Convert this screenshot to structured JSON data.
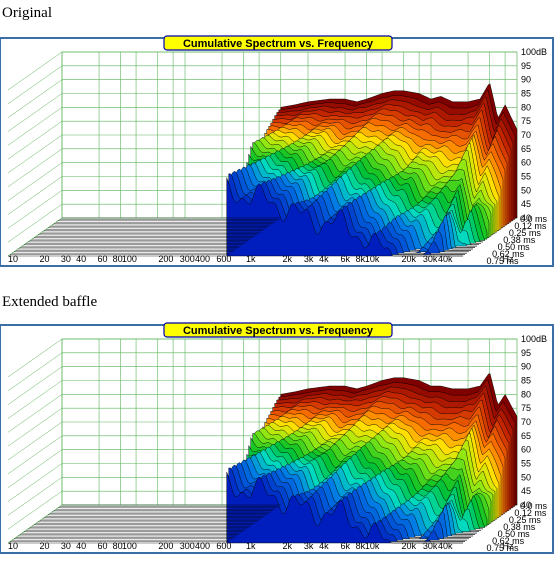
{
  "captions": [
    "Original",
    "Extended baffle"
  ],
  "chart_data": [
    {
      "type": "area",
      "title": "Cumulative Spectrum vs. Frequency",
      "xlabel": "Hz",
      "y_unit": "dB",
      "z_axis": "time (ms)",
      "x_scale": "log",
      "x_ticks": [
        "10",
        "20",
        "30",
        "40",
        "60",
        "80",
        "100",
        "200",
        "300",
        "400",
        "600",
        "1k",
        "2k",
        "3k",
        "4k",
        "6k",
        "8k",
        "10k",
        "20k",
        "30k",
        "40k",
        "Hz"
      ],
      "y_ticks": [
        "100dB",
        "95",
        "90",
        "85",
        "80",
        "75",
        "70",
        "65",
        "60",
        "55",
        "50",
        "45",
        "40"
      ],
      "z_ticks": [
        "0.0 ms",
        "0.12 ms",
        "0.25 ms",
        "0.38 ms",
        "0.50 ms",
        "0.62 ms",
        "0.75 ms"
      ],
      "ylim": [
        40,
        100
      ],
      "xlim": [
        10,
        50000
      ],
      "data_x_start": 600,
      "slices": 28,
      "decay_profile": "original",
      "first_slice": {
        "x": [
          600,
          800,
          1000,
          1500,
          2000,
          2500,
          3000,
          4000,
          5000,
          6000,
          8000,
          10000,
          12000,
          15000,
          20000,
          25000,
          30000,
          35000,
          40000,
          50000
        ],
        "y": [
          80,
          81,
          82,
          83,
          83,
          82,
          83,
          85,
          86,
          86,
          85,
          83,
          84,
          82,
          82,
          83,
          89,
          76,
          81,
          72
        ]
      }
    },
    {
      "type": "area",
      "title": "Cumulative Spectrum vs. Frequency",
      "xlabel": "Hz",
      "y_unit": "dB",
      "z_axis": "time (ms)",
      "x_scale": "log",
      "x_ticks": [
        "10",
        "20",
        "30",
        "40",
        "60",
        "80",
        "100",
        "200",
        "300",
        "400",
        "600",
        "1k",
        "2k",
        "3k",
        "4k",
        "6k",
        "8k",
        "10k",
        "20k",
        "30k",
        "40k",
        "Hz"
      ],
      "y_ticks": [
        "100dB",
        "95",
        "90",
        "85",
        "80",
        "75",
        "70",
        "65",
        "60",
        "55",
        "50",
        "45",
        "40"
      ],
      "z_ticks": [
        "0.0 ms",
        "0.12 ms",
        "0.25 ms",
        "0.38 ms",
        "0.50 ms",
        "0.62 ms",
        "0.75 ms"
      ],
      "ylim": [
        40,
        100
      ],
      "xlim": [
        10,
        50000
      ],
      "data_x_start": 600,
      "slices": 28,
      "decay_profile": "extended",
      "first_slice": {
        "x": [
          600,
          800,
          1000,
          1500,
          2000,
          2500,
          3000,
          4000,
          5000,
          6000,
          8000,
          10000,
          12000,
          15000,
          20000,
          25000,
          30000,
          35000,
          40000,
          50000
        ],
        "y": [
          80,
          81,
          82,
          83,
          83,
          82,
          83,
          85,
          86,
          86,
          85,
          83,
          83,
          82,
          82,
          83,
          88,
          76,
          80,
          72
        ]
      }
    }
  ]
}
